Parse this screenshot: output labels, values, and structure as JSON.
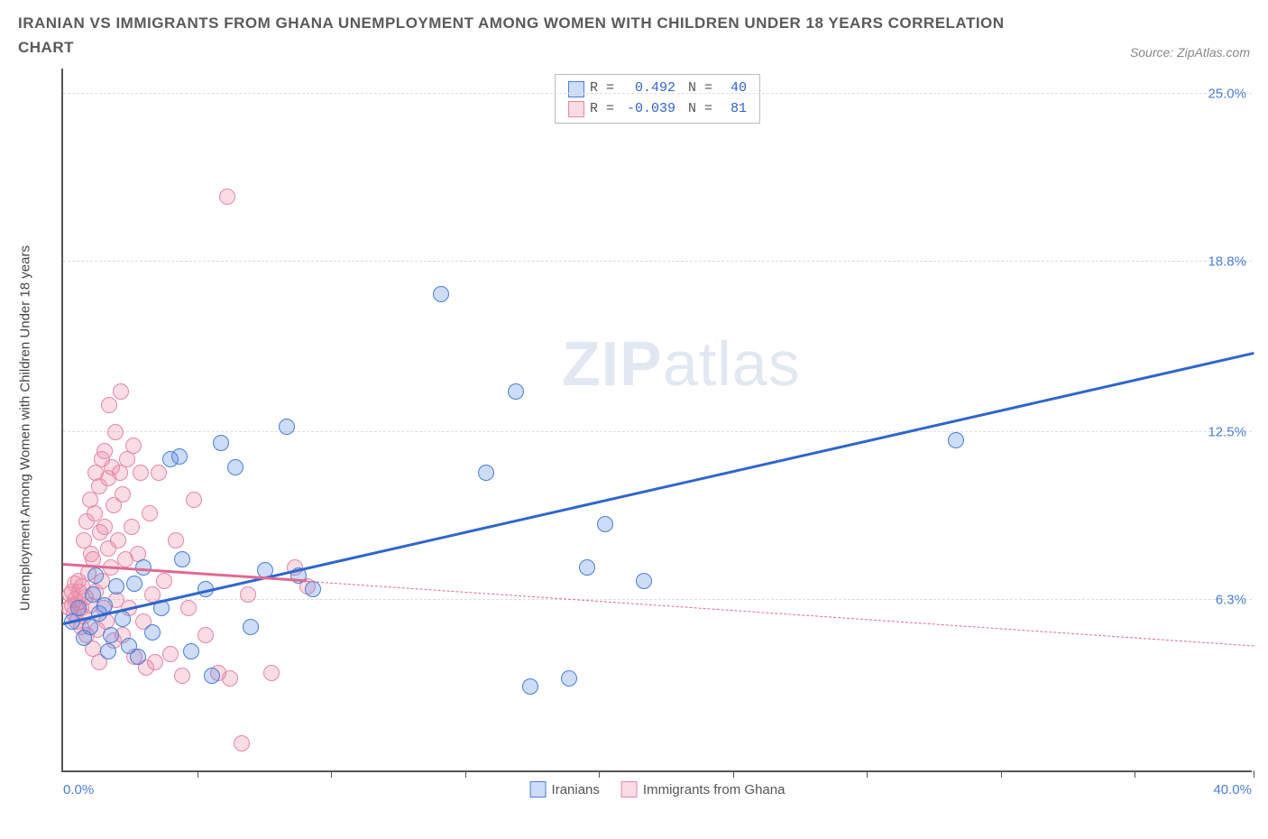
{
  "title": "IRANIAN VS IMMIGRANTS FROM GHANA UNEMPLOYMENT AMONG WOMEN WITH CHILDREN UNDER 18 YEARS CORRELATION CHART",
  "source": "Source: ZipAtlas.com",
  "ylabel": "Unemployment Among Women with Children Under 18 years",
  "watermark_bold": "ZIP",
  "watermark_light": "atlas",
  "chart": {
    "type": "scatter",
    "xlim": [
      0,
      40
    ],
    "ylim": [
      0,
      26
    ],
    "xtick_positions": [
      4.5,
      9,
      13.5,
      18,
      22.5,
      27,
      31.5,
      36,
      40
    ],
    "x_axis_labels": {
      "left": "0.0%",
      "right": "40.0%"
    },
    "y_gridlines": [
      {
        "value": 6.3,
        "label": "6.3%"
      },
      {
        "value": 12.5,
        "label": "12.5%"
      },
      {
        "value": 18.8,
        "label": "18.8%"
      },
      {
        "value": 25.0,
        "label": "25.0%"
      }
    ],
    "background_color": "#ffffff",
    "grid_color": "#dddddd",
    "axis_color": "#555555",
    "marker_size": 18,
    "series": [
      {
        "name": "Iranians",
        "fill": "rgba(90,140,230,0.30)",
        "stroke": "#4a7fd6",
        "line_color": "#2f66cc",
        "R": "0.492",
        "N": "40",
        "trend": {
          "x1": 0,
          "y1": 5.4,
          "x2": 40,
          "y2": 15.4,
          "dashed_after_x": null
        },
        "points": [
          [
            0.3,
            5.5
          ],
          [
            0.5,
            6.0
          ],
          [
            0.7,
            4.9
          ],
          [
            0.9,
            5.3
          ],
          [
            1.0,
            6.5
          ],
          [
            1.1,
            7.2
          ],
          [
            1.2,
            5.8
          ],
          [
            1.4,
            6.1
          ],
          [
            1.5,
            4.4
          ],
          [
            1.6,
            5.0
          ],
          [
            1.8,
            6.8
          ],
          [
            2.0,
            5.6
          ],
          [
            2.2,
            4.6
          ],
          [
            2.4,
            6.9
          ],
          [
            2.5,
            4.2
          ],
          [
            2.7,
            7.5
          ],
          [
            3.0,
            5.1
          ],
          [
            3.3,
            6.0
          ],
          [
            3.6,
            11.5
          ],
          [
            4.0,
            7.8
          ],
          [
            4.3,
            4.4
          ],
          [
            4.8,
            6.7
          ],
          [
            5.3,
            12.1
          ],
          [
            5.8,
            11.2
          ],
          [
            6.3,
            5.3
          ],
          [
            6.8,
            7.4
          ],
          [
            7.5,
            12.7
          ],
          [
            7.9,
            7.2
          ],
          [
            8.4,
            6.7
          ],
          [
            12.7,
            17.6
          ],
          [
            14.2,
            11.0
          ],
          [
            15.2,
            14.0
          ],
          [
            15.7,
            3.1
          ],
          [
            17.0,
            3.4
          ],
          [
            17.6,
            7.5
          ],
          [
            18.2,
            9.1
          ],
          [
            19.5,
            7.0
          ],
          [
            30.0,
            12.2
          ],
          [
            3.9,
            11.6
          ],
          [
            5.0,
            3.5
          ]
        ]
      },
      {
        "name": "Immigrants from Ghana",
        "fill": "rgba(240,140,170,0.30)",
        "stroke": "#e587a5",
        "line_color": "#e06a90",
        "R": "-0.039",
        "N": "81",
        "trend": {
          "x1": 0,
          "y1": 7.6,
          "x2": 40,
          "y2": 4.6,
          "dashed_after_x": 8.2
        },
        "points": [
          [
            0.2,
            6.0
          ],
          [
            0.25,
            6.5
          ],
          [
            0.3,
            6.1
          ],
          [
            0.3,
            6.6
          ],
          [
            0.35,
            5.8
          ],
          [
            0.4,
            6.3
          ],
          [
            0.4,
            6.9
          ],
          [
            0.45,
            5.5
          ],
          [
            0.5,
            6.2
          ],
          [
            0.5,
            7.0
          ],
          [
            0.55,
            6.6
          ],
          [
            0.6,
            5.3
          ],
          [
            0.6,
            6.0
          ],
          [
            0.65,
            6.8
          ],
          [
            0.7,
            5.7
          ],
          [
            0.7,
            8.5
          ],
          [
            0.75,
            6.4
          ],
          [
            0.8,
            9.2
          ],
          [
            0.8,
            5.0
          ],
          [
            0.85,
            7.3
          ],
          [
            0.9,
            10.0
          ],
          [
            0.9,
            6.1
          ],
          [
            0.95,
            8.0
          ],
          [
            1.0,
            4.5
          ],
          [
            1.0,
            7.8
          ],
          [
            1.05,
            9.5
          ],
          [
            1.1,
            6.6
          ],
          [
            1.1,
            11.0
          ],
          [
            1.15,
            5.2
          ],
          [
            1.2,
            10.5
          ],
          [
            1.2,
            4.0
          ],
          [
            1.25,
            8.8
          ],
          [
            1.3,
            7.0
          ],
          [
            1.3,
            11.5
          ],
          [
            1.35,
            6.0
          ],
          [
            1.4,
            9.0
          ],
          [
            1.4,
            11.8
          ],
          [
            1.45,
            5.5
          ],
          [
            1.5,
            8.2
          ],
          [
            1.5,
            10.8
          ],
          [
            1.55,
            13.5
          ],
          [
            1.6,
            7.5
          ],
          [
            1.65,
            11.2
          ],
          [
            1.7,
            4.8
          ],
          [
            1.7,
            9.8
          ],
          [
            1.75,
            12.5
          ],
          [
            1.8,
            6.3
          ],
          [
            1.85,
            8.5
          ],
          [
            1.9,
            11.0
          ],
          [
            1.95,
            14.0
          ],
          [
            2.0,
            5.0
          ],
          [
            2.0,
            10.2
          ],
          [
            2.1,
            7.8
          ],
          [
            2.15,
            11.5
          ],
          [
            2.2,
            6.0
          ],
          [
            2.3,
            9.0
          ],
          [
            2.35,
            12.0
          ],
          [
            2.4,
            4.2
          ],
          [
            2.5,
            8.0
          ],
          [
            2.6,
            11.0
          ],
          [
            2.7,
            5.5
          ],
          [
            2.8,
            3.8
          ],
          [
            2.9,
            9.5
          ],
          [
            3.0,
            6.5
          ],
          [
            3.1,
            4.0
          ],
          [
            3.2,
            11.0
          ],
          [
            3.4,
            7.0
          ],
          [
            3.6,
            4.3
          ],
          [
            3.8,
            8.5
          ],
          [
            4.0,
            3.5
          ],
          [
            4.2,
            6.0
          ],
          [
            4.4,
            10.0
          ],
          [
            4.8,
            5.0
          ],
          [
            5.2,
            3.6
          ],
          [
            5.6,
            3.4
          ],
          [
            5.5,
            21.2
          ],
          [
            6.0,
            1.0
          ],
          [
            6.2,
            6.5
          ],
          [
            7.0,
            3.6
          ],
          [
            7.8,
            7.5
          ],
          [
            8.2,
            6.8
          ]
        ]
      }
    ]
  },
  "stats_box": {
    "rows": [
      {
        "color_key": 0,
        "r_label": "R =",
        "r_val": "0.492",
        "n_label": "N =",
        "n_val": "40"
      },
      {
        "color_key": 1,
        "r_label": "R =",
        "r_val": "-0.039",
        "n_label": "N =",
        "n_val": "81"
      }
    ]
  },
  "bottom_legend": {}
}
